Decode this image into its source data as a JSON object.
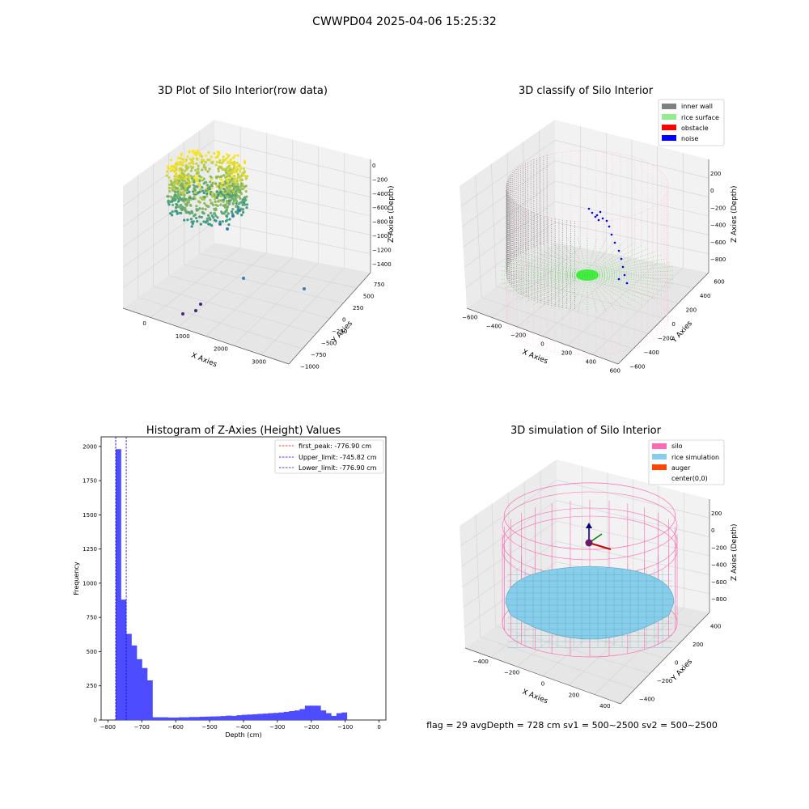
{
  "suptitle": "CWWPD04 2025-04-06 15:25:32",
  "footer": "flag = 29  avgDepth = 728 cm  sv1 = 500~2500  sv2 = 500~2500",
  "colors": {
    "inner_wall": "#808080",
    "rice_surface": "#90ee90",
    "obstacle": "#ff0000",
    "noise": "#0000ff",
    "silo": "#ff69b4",
    "rice_simulation": "#87ceeb",
    "auger": "#ff4500",
    "hist_bar": "#4d4dff",
    "first_peak_line": "#ff0000",
    "limit_line": "#0000ff"
  },
  "plot1": {
    "title": "3D Plot of Silo Interior(row data)",
    "xlabel": "X Axies",
    "ylabel": "Y Axies",
    "zlabel": "Z Axies (Depth)",
    "xticks": [
      "0",
      "1000",
      "2000",
      "3000"
    ],
    "yticks": [
      "750",
      "500",
      "250",
      "0",
      "−250",
      "−500",
      "−750",
      "−1000"
    ],
    "zticks": [
      "0",
      "−200",
      "−400",
      "−600",
      "−800",
      "−1000",
      "−1200",
      "−1400"
    ]
  },
  "plot2": {
    "title": "3D classify of Silo Interior",
    "xlabel": "X Axies",
    "ylabel": "Y Axies",
    "zlabel": "Z Axies (Depth)",
    "xticks": [
      "−600",
      "−400",
      "−200",
      "0",
      "200",
      "400",
      "600"
    ],
    "yticks": [
      "600",
      "400",
      "200",
      "0",
      "−200",
      "−400",
      "−600"
    ],
    "zticks": [
      "200",
      "0",
      "−200",
      "−400",
      "−600",
      "−800"
    ],
    "legend": [
      "inner wall",
      "rice surface",
      "obstacle",
      "noise"
    ]
  },
  "plot4": {
    "title": "3D simulation of Silo Interior",
    "xlabel": "X Axies",
    "ylabel": "Y Axies",
    "zlabel": "Z Axies (Depth)",
    "xticks": [
      "−400",
      "−200",
      "0",
      "200",
      "400"
    ],
    "yticks": [
      "400",
      "200",
      "0",
      "−200",
      "−400"
    ],
    "zticks": [
      "200",
      "0",
      "−200",
      "−400",
      "−600",
      "−800"
    ],
    "legend": [
      "silo",
      "rice simulation",
      "auger",
      "center(0,0)"
    ]
  },
  "chart_data": {
    "type": "bar",
    "title": "Histogram of Z-Axies (Height) Values",
    "xlabel": "Depth (cm)",
    "ylabel": "Frequency",
    "xlim": [
      -820,
      20
    ],
    "ylim": [
      0,
      2070
    ],
    "xticks": [
      -800,
      -700,
      -600,
      -500,
      -400,
      -300,
      -200,
      -100,
      0
    ],
    "yticks": [
      0,
      250,
      500,
      750,
      1000,
      1250,
      1500,
      1750,
      2000
    ],
    "bin_width": 15.5,
    "bin_start": -777,
    "values": [
      1980,
      880,
      630,
      545,
      445,
      380,
      290,
      20,
      20,
      20,
      18,
      18,
      20,
      20,
      22,
      22,
      24,
      25,
      26,
      27,
      29,
      32,
      30,
      35,
      38,
      40,
      42,
      45,
      47,
      50,
      52,
      55,
      60,
      65,
      70,
      80,
      105,
      105,
      105,
      70,
      50,
      30,
      50,
      55
    ],
    "first_peak": -776.9,
    "upper_limit": -745.82,
    "lower_limit": -776.9,
    "legend": [
      "first_peak: -776.90 cm",
      "Upper_limit: -745.82 cm",
      "Lower_limit: -776.90 cm"
    ],
    "legend_position": "upper right"
  }
}
